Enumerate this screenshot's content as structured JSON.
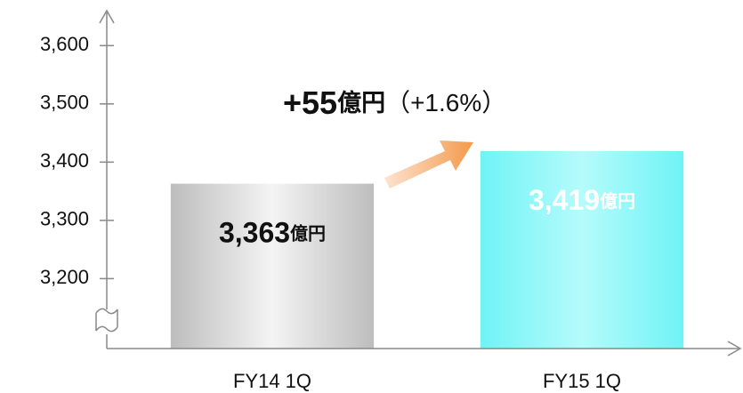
{
  "chart_data": {
    "type": "bar",
    "categories": [
      "FY14 1Q",
      "FY15 1Q"
    ],
    "values": [
      3363,
      3419
    ],
    "value_labels": [
      "3,363",
      "3,419"
    ],
    "unit": "億円",
    "colors": [
      "#bdbdbd",
      "#6ff3f5"
    ],
    "ylim": [
      3080,
      3660
    ],
    "yticks": [
      {
        "value": 3200,
        "label": "3,200"
      },
      {
        "value": 3300,
        "label": "3,300"
      },
      {
        "value": 3400,
        "label": "3,400"
      },
      {
        "value": 3500,
        "label": "3,500"
      },
      {
        "value": 3600,
        "label": "3,600"
      }
    ],
    "annotation": {
      "change": "+55",
      "unit": "億円",
      "percent": "（+1.6%）"
    }
  }
}
